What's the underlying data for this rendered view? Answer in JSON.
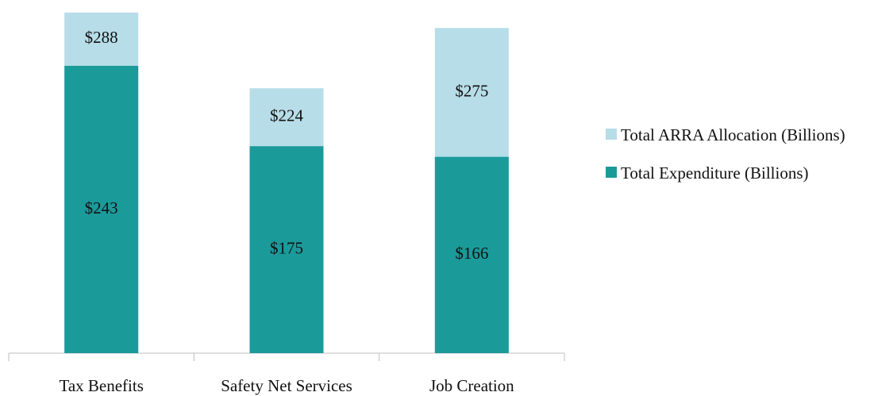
{
  "chart_data": {
    "type": "bar",
    "categories": [
      "Tax Benefits",
      "Safety Net Services",
      "Job Creation"
    ],
    "series": [
      {
        "name": "Total ARRA Allocation (Billions)",
        "color": "#b7dde8",
        "values": [
          288,
          224,
          275
        ],
        "value_labels": [
          "$288",
          "$224",
          "$275"
        ]
      },
      {
        "name": "Total Expenditure (Billions)",
        "color": "#1b9a9a",
        "values": [
          243,
          175,
          166
        ],
        "value_labels": [
          "$243",
          "$175",
          "$166"
        ]
      }
    ],
    "ylim": [
      0,
      300
    ],
    "legend": "right"
  }
}
